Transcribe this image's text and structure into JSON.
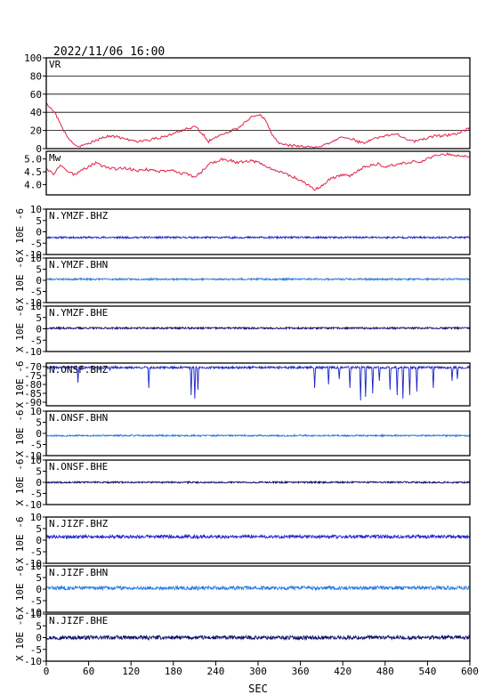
{
  "header": {
    "datetime": "2022/11/06 16:00"
  },
  "x_axis": {
    "label": "SEC",
    "range": [
      0,
      600
    ],
    "ticks": [
      "0",
      "60",
      "120",
      "180",
      "240",
      "300",
      "360",
      "420",
      "480",
      "540",
      "600"
    ]
  },
  "colors": {
    "frame": "#000000",
    "vr_mw": "#e0204a",
    "bhz": "#1a22c8",
    "bhn": "#2a7ae0",
    "bhe": "#10106a"
  },
  "chart_data": [
    {
      "type": "line",
      "panel": "VR",
      "label": "VR",
      "ylim": [
        0,
        100
      ],
      "ytick_labels": [
        "0",
        "20",
        "40",
        "60",
        "80",
        "100"
      ],
      "grid": true,
      "x": [
        0,
        10,
        20,
        30,
        40,
        50,
        60,
        70,
        80,
        90,
        100,
        110,
        120,
        130,
        140,
        150,
        160,
        170,
        180,
        190,
        200,
        210,
        220,
        230,
        240,
        250,
        260,
        270,
        280,
        290,
        300,
        310,
        320,
        330,
        340,
        350,
        360,
        370,
        380,
        390,
        400,
        410,
        420,
        430,
        440,
        450,
        460,
        470,
        480,
        490,
        500,
        510,
        520,
        530,
        540,
        550,
        560,
        570,
        580,
        590,
        600
      ],
      "values": [
        50,
        42,
        28,
        12,
        4,
        3,
        5,
        9,
        12,
        14,
        13,
        11,
        9,
        8,
        9,
        10,
        12,
        14,
        17,
        19,
        22,
        24,
        18,
        8,
        12,
        16,
        19,
        22,
        28,
        35,
        38,
        33,
        15,
        6,
        4,
        3,
        3,
        2,
        2,
        3,
        5,
        9,
        13,
        12,
        8,
        6,
        10,
        12,
        14,
        16,
        15,
        10,
        8,
        9,
        12,
        14,
        14,
        15,
        16,
        19,
        23
      ]
    },
    {
      "type": "line",
      "panel": "Mw",
      "label": "Mw",
      "ylim": [
        3.6,
        5.3
      ],
      "ytick_labels": [
        "4.0",
        "4.5",
        "5.0"
      ],
      "grid": false,
      "x": [
        0,
        10,
        20,
        30,
        40,
        50,
        60,
        70,
        80,
        90,
        100,
        110,
        120,
        130,
        140,
        150,
        160,
        170,
        180,
        190,
        200,
        210,
        220,
        230,
        240,
        250,
        260,
        270,
        280,
        290,
        300,
        310,
        320,
        330,
        340,
        350,
        360,
        370,
        380,
        390,
        400,
        410,
        420,
        430,
        440,
        450,
        460,
        470,
        480,
        490,
        500,
        510,
        520,
        530,
        540,
        550,
        560,
        570,
        580,
        590,
        600
      ],
      "values": [
        4.6,
        4.4,
        4.75,
        4.5,
        4.4,
        4.55,
        4.7,
        4.85,
        4.7,
        4.65,
        4.6,
        4.65,
        4.6,
        4.55,
        4.6,
        4.55,
        4.5,
        4.55,
        4.55,
        4.45,
        4.4,
        4.3,
        4.5,
        4.8,
        4.9,
        5.0,
        4.95,
        4.85,
        4.9,
        4.95,
        4.85,
        4.75,
        4.6,
        4.5,
        4.4,
        4.3,
        4.15,
        4.0,
        3.8,
        3.95,
        4.2,
        4.3,
        4.4,
        4.35,
        4.5,
        4.7,
        4.75,
        4.8,
        4.7,
        4.75,
        4.8,
        4.85,
        4.9,
        4.85,
        5.0,
        5.1,
        5.15,
        5.2,
        5.15,
        5.1,
        5.1
      ]
    },
    {
      "type": "line",
      "panel": "trace",
      "label": "N.YMZF.BHZ",
      "ylim": [
        -10,
        10
      ],
      "ytick_labels": [
        "-10",
        "-5",
        "0",
        "5",
        "10"
      ],
      "ylabel": "X 10E -6",
      "baseline": -2.5,
      "noise": 0.4,
      "dips": [],
      "seed": 11
    },
    {
      "type": "line",
      "panel": "trace",
      "label": "N.YMZF.BHN",
      "ylim": [
        -10,
        10
      ],
      "ytick_labels": [
        "-10",
        "-5",
        "0",
        "5",
        "10"
      ],
      "ylabel": "X 10E -6",
      "baseline": 0.5,
      "noise": 0.4,
      "dips": [],
      "seed": 23
    },
    {
      "type": "line",
      "panel": "trace",
      "label": "N.YMZF.BHE",
      "ylim": [
        -10,
        10
      ],
      "ytick_labels": [
        "-10",
        "-5",
        "0",
        "5",
        "10"
      ],
      "ylabel": "X 10E -6",
      "baseline": 0.3,
      "noise": 0.4,
      "dips": [],
      "seed": 37
    },
    {
      "type": "line",
      "panel": "trace",
      "label": "N.ONSF.BHZ",
      "ylim": [
        -92,
        -68
      ],
      "ytick_labels": [
        "-90",
        "-85",
        "-80",
        "-75",
        "-70"
      ],
      "ylabel": "X 10E -6",
      "baseline": -70.5,
      "noise": 0.6,
      "dips": [
        [
          45,
          -79
        ],
        [
          90,
          -72
        ],
        [
          145,
          -82
        ],
        [
          205,
          -86
        ],
        [
          210,
          -88
        ],
        [
          215,
          -83
        ],
        [
          380,
          -82
        ],
        [
          400,
          -80
        ],
        [
          415,
          -77
        ],
        [
          430,
          -82
        ],
        [
          445,
          -89
        ],
        [
          452,
          -87
        ],
        [
          462,
          -85
        ],
        [
          472,
          -78
        ],
        [
          487,
          -83
        ],
        [
          497,
          -86
        ],
        [
          505,
          -88
        ],
        [
          515,
          -86
        ],
        [
          525,
          -84
        ],
        [
          548,
          -82
        ],
        [
          575,
          -78
        ],
        [
          582,
          -77
        ]
      ],
      "seed": 41
    },
    {
      "type": "line",
      "panel": "trace",
      "label": "N.ONSF.BHN",
      "ylim": [
        -10,
        10
      ],
      "ytick_labels": [
        "-10",
        "-5",
        "0",
        "5",
        "10"
      ],
      "ylabel": "X 10E -6",
      "baseline": -1.0,
      "noise": 0.35,
      "dips": [],
      "seed": 53
    },
    {
      "type": "line",
      "panel": "trace",
      "label": "N.ONSF.BHE",
      "ylim": [
        -10,
        10
      ],
      "ytick_labels": [
        "-10",
        "-5",
        "0",
        "5",
        "10"
      ],
      "ylabel": "X 10E -6",
      "baseline": 0.0,
      "noise": 0.35,
      "dips": [],
      "seed": 67
    },
    {
      "type": "line",
      "panel": "trace",
      "label": "N.JIZF.BHZ",
      "ylim": [
        -10,
        10
      ],
      "ytick_labels": [
        "-10",
        "-5",
        "0",
        "5",
        "10"
      ],
      "ylabel": "X 10E -6",
      "baseline": 1.5,
      "noise": 0.7,
      "dips": [],
      "seed": 79
    },
    {
      "type": "line",
      "panel": "trace",
      "label": "N.JIZF.BHN",
      "ylim": [
        -10,
        10
      ],
      "ytick_labels": [
        "-10",
        "-5",
        "0",
        "5",
        "10"
      ],
      "ylabel": "X 10E -6",
      "baseline": 0.5,
      "noise": 0.8,
      "dips": [],
      "seed": 83
    },
    {
      "type": "line",
      "panel": "trace",
      "label": "N.JIZF.BHE",
      "ylim": [
        -10,
        10
      ],
      "ytick_labels": [
        "-10",
        "-5",
        "0",
        "5",
        "10"
      ],
      "ylabel": "X 10E -6",
      "baseline": 0.0,
      "noise": 0.8,
      "dips": [],
      "seed": 97
    }
  ]
}
